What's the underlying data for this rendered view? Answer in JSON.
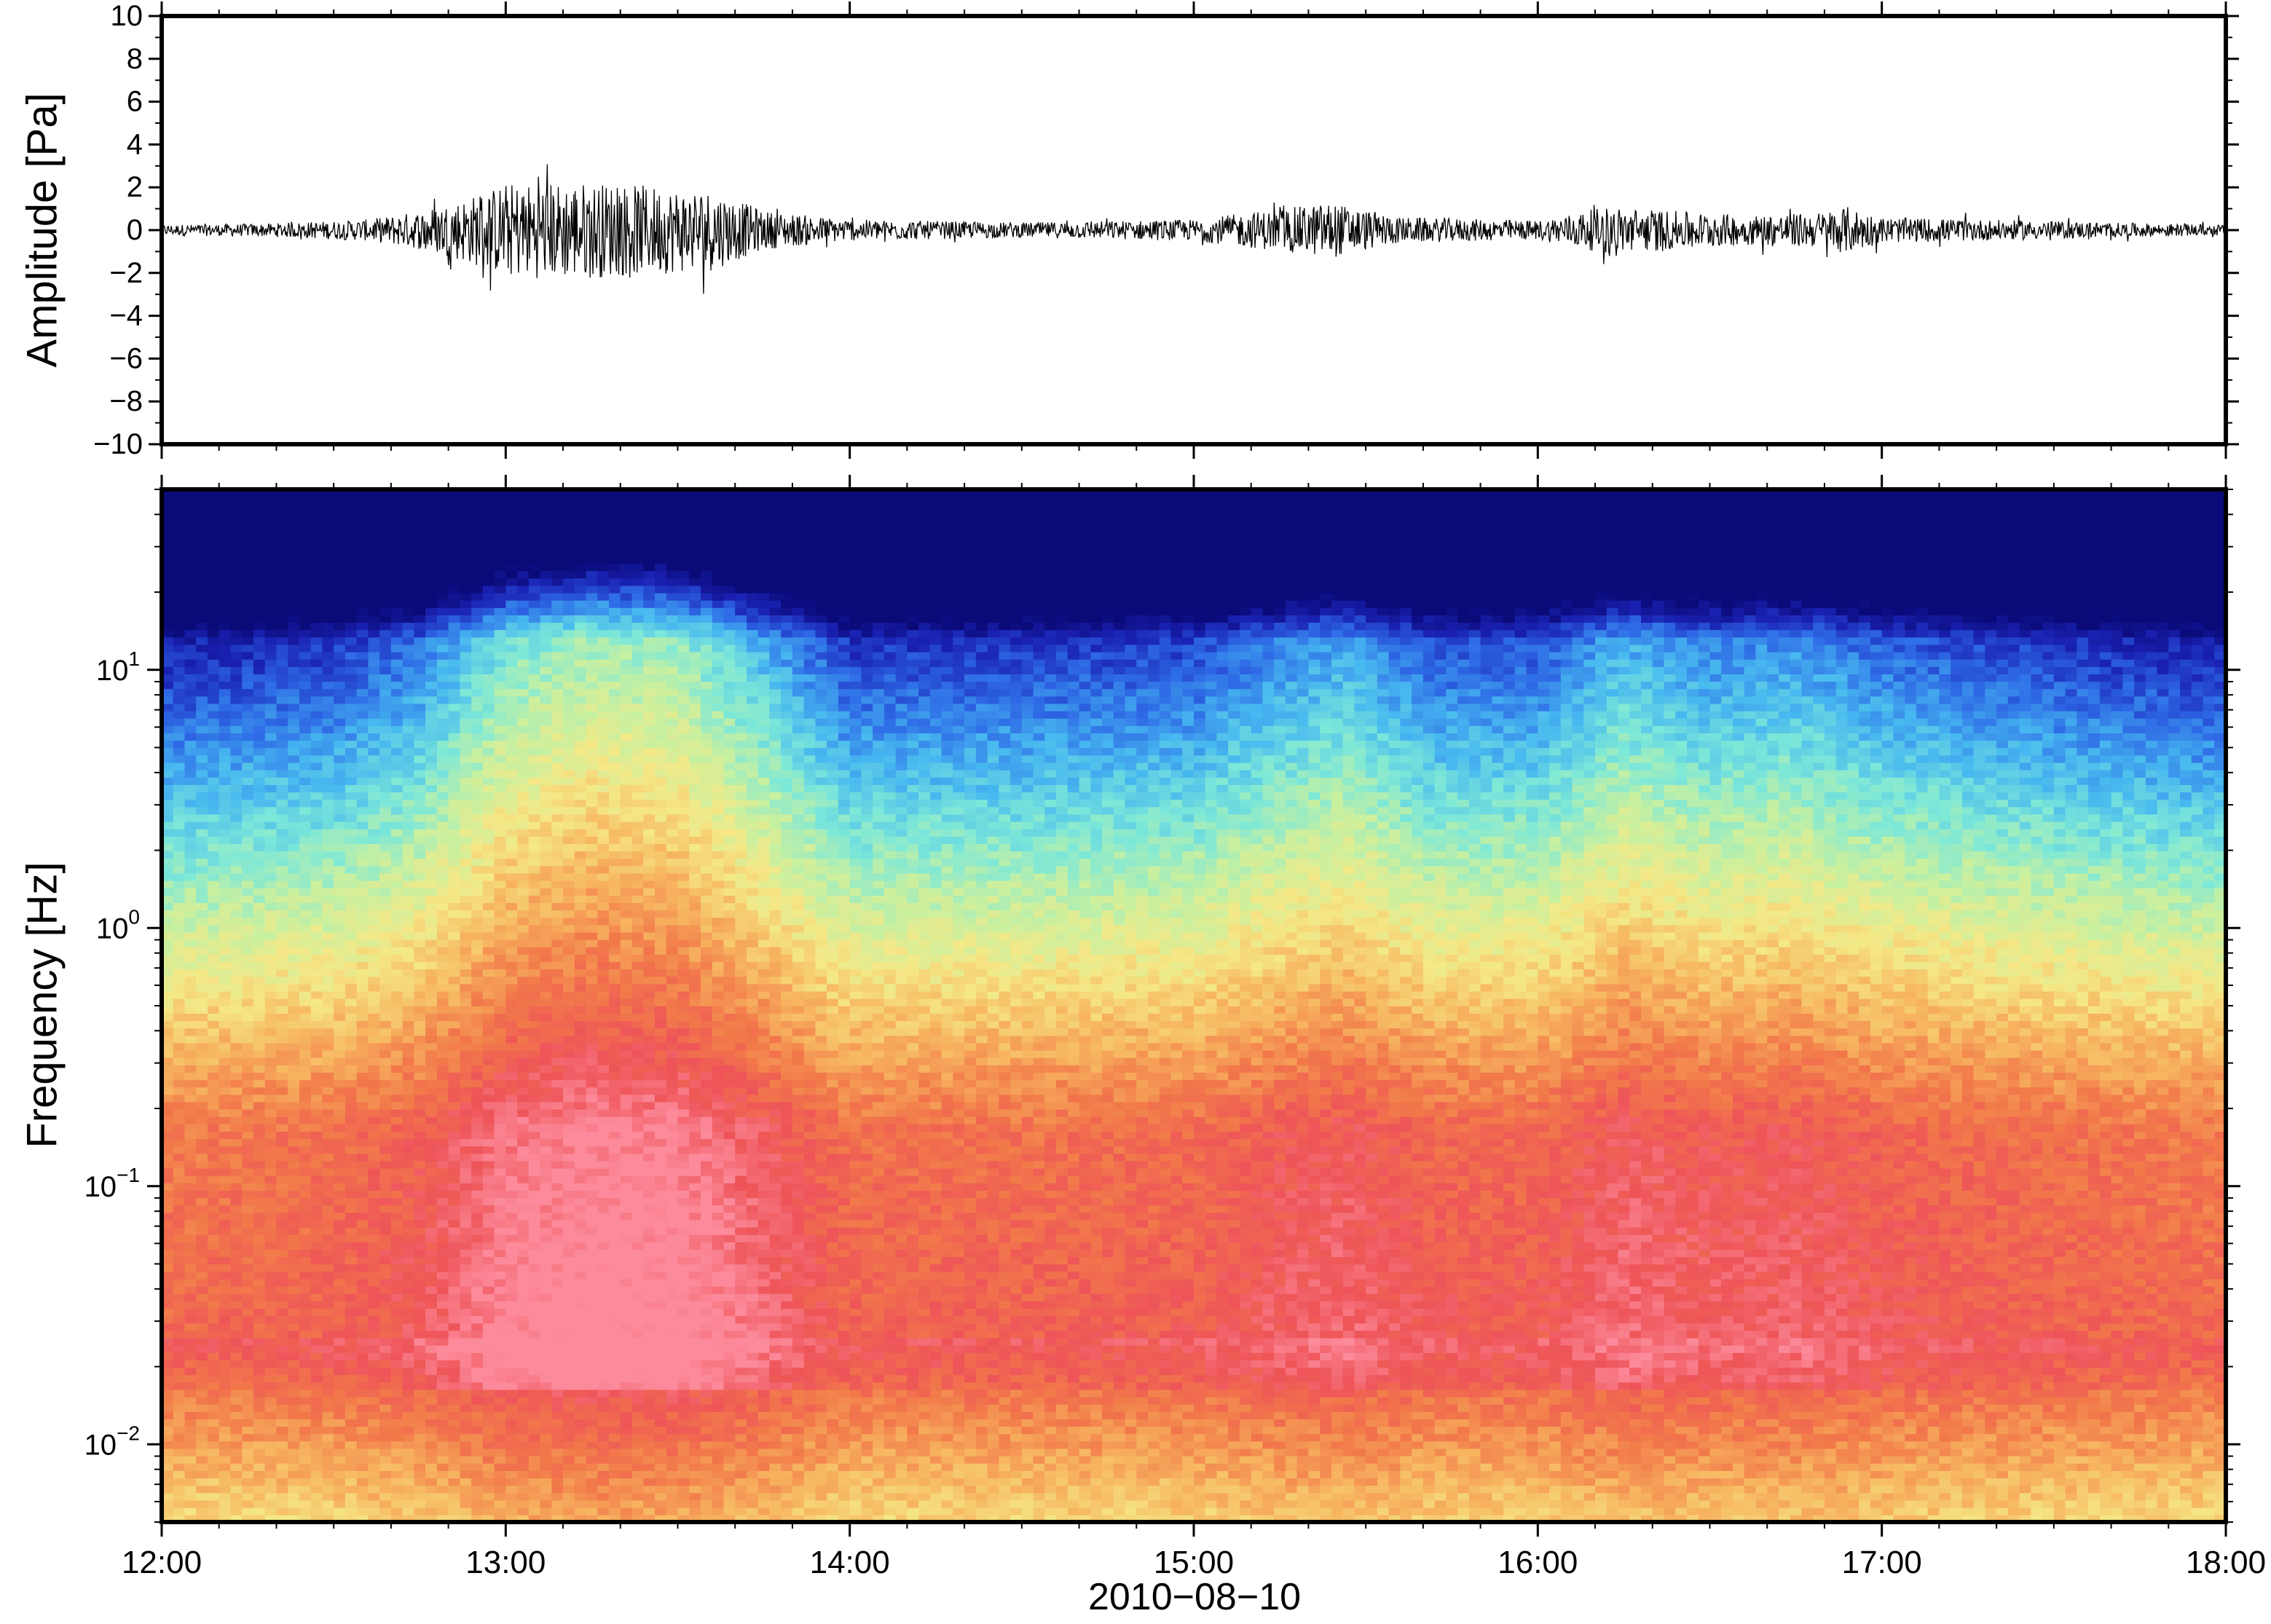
{
  "chart_data": [
    {
      "type": "line",
      "panel": "waveform",
      "ylabel": "Amplitude [Pa]",
      "ylim": [
        -10,
        10
      ],
      "yticks": [
        10,
        8,
        6,
        4,
        2,
        0,
        -2,
        -4,
        -6,
        -8,
        -10
      ],
      "ytick_labels": [
        "10",
        "8",
        "6",
        "4",
        "2",
        "0",
        "−2",
        "−4",
        "−6",
        "−8",
        "−10"
      ],
      "xlim": [
        "2010-08-10 12:00",
        "2010-08-10 18:00"
      ],
      "line_color": "#000000",
      "envelope": {
        "time_hours": [
          12.0,
          12.3,
          12.6,
          12.75,
          12.9,
          13.0,
          13.2,
          13.4,
          13.6,
          13.75,
          14.0,
          14.5,
          15.0,
          15.2,
          15.4,
          15.6,
          16.0,
          16.2,
          16.4,
          16.6,
          16.8,
          16.9,
          17.0,
          17.4,
          17.8,
          18.0
        ],
        "amplitude_pa": [
          0.25,
          0.3,
          0.5,
          0.9,
          1.6,
          2.2,
          2.3,
          2.1,
          1.9,
          0.9,
          0.5,
          0.35,
          0.5,
          0.9,
          1.3,
          0.6,
          0.45,
          1.1,
          0.9,
          0.7,
          0.8,
          1.1,
          0.6,
          0.45,
          0.3,
          0.25
        ]
      }
    },
    {
      "type": "heatmap",
      "panel": "spectrogram",
      "ylabel": "Frequency [Hz]",
      "yscale": "log",
      "ylim_hz": [
        0.005,
        50
      ],
      "yticks_hz": [
        10,
        1,
        0.1,
        0.01
      ],
      "ytick_labels": [
        {
          "base": "10",
          "exp": "1"
        },
        {
          "base": "10",
          "exp": "0"
        },
        {
          "base": "10",
          "exp": "−1"
        },
        {
          "base": "10",
          "exp": "−2"
        }
      ],
      "xlabel": "2010−08−10",
      "xlim": [
        "12:00",
        "18:00"
      ],
      "xtick_labels": [
        "12:00",
        "13:00",
        "14:00",
        "15:00",
        "16:00",
        "17:00",
        "18:00"
      ],
      "colormap": [
        "#0a0a78",
        "#1a22b4",
        "#2e6ae6",
        "#47b8f0",
        "#7de8d8",
        "#c8f0a0",
        "#f5e886",
        "#f7b560",
        "#f27a4a",
        "#ee5458",
        "#fc8a9a"
      ],
      "power_profile": {
        "time_hours": [
          12.0,
          12.5,
          12.75,
          13.0,
          13.25,
          13.5,
          13.75,
          14.0,
          14.5,
          15.0,
          15.25,
          15.45,
          15.7,
          16.0,
          16.25,
          16.5,
          16.75,
          17.0,
          17.5,
          18.0
        ],
        "relative_power": [
          0.1,
          0.2,
          0.4,
          0.85,
          1.0,
          0.95,
          0.6,
          0.2,
          0.2,
          0.25,
          0.45,
          0.55,
          0.3,
          0.3,
          0.6,
          0.45,
          0.5,
          0.35,
          0.2,
          0.1
        ]
      }
    }
  ]
}
